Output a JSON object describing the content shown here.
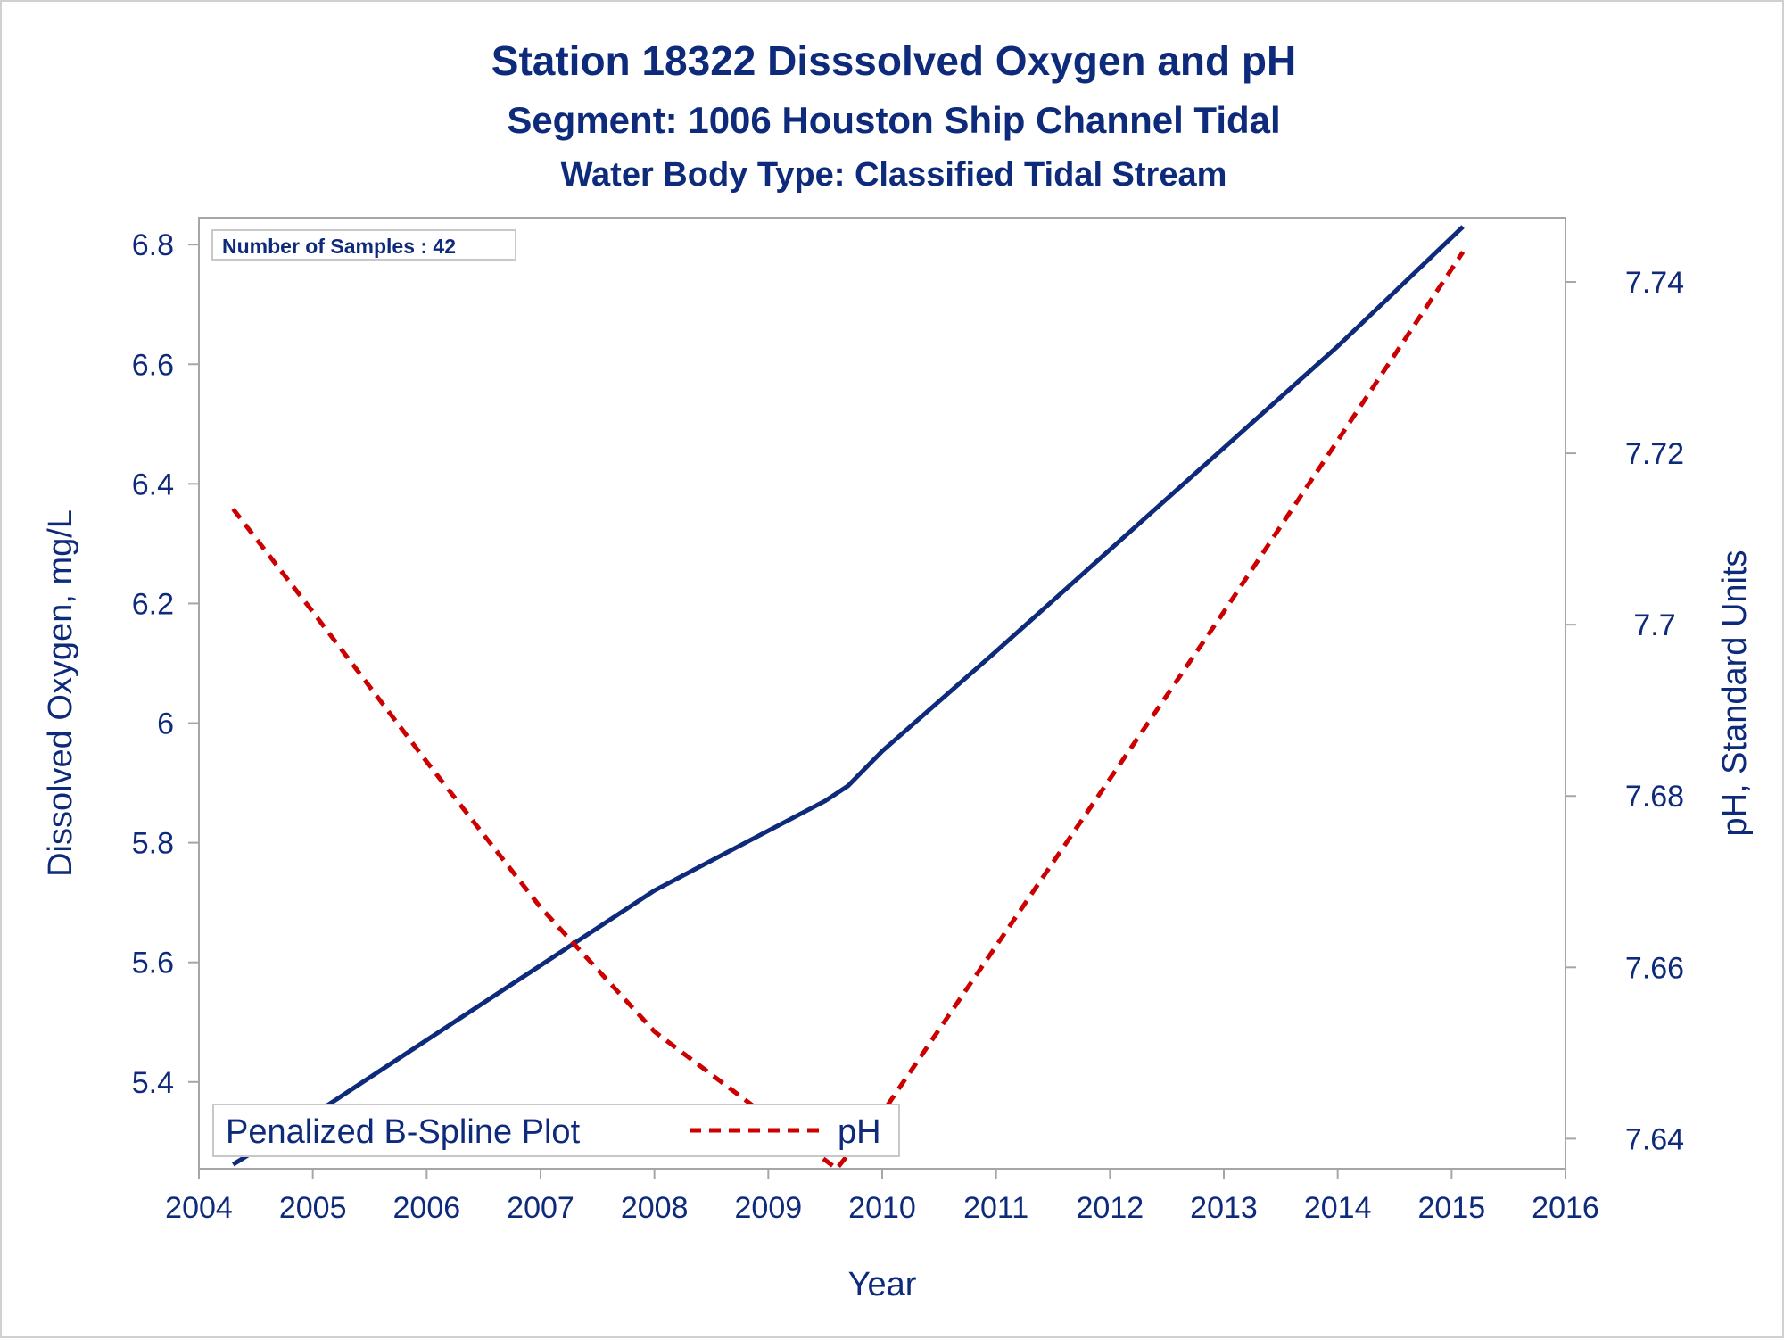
{
  "chart_data": {
    "type": "line",
    "title": "Station 18322   Disssolved Oxygen and pH",
    "subtitle": "Segment: 1006  Houston Ship Channel Tidal",
    "subtitle2": "Water Body Type: Classified Tidal Stream",
    "annotation": "Number of Samples : 42",
    "xlabel": "Year",
    "ylabel_left": "Dissolved Oxygen, mg/L",
    "ylabel_right": "pH, Standard Units",
    "x_ticks": [
      "2004",
      "2005",
      "2006",
      "2007",
      "2008",
      "2009",
      "2010",
      "2011",
      "2012",
      "2013",
      "2014",
      "2015",
      "2016"
    ],
    "y_left_ticks": [
      "5.4",
      "5.6",
      "5.8",
      "6",
      "6.2",
      "6.4",
      "6.6",
      "6.8"
    ],
    "y_right_ticks": [
      "7.64",
      "7.66",
      "7.68",
      "7.7",
      "7.72",
      "7.74"
    ],
    "xlim": [
      2004,
      2016
    ],
    "ylim_left": [
      5.255,
      6.845
    ],
    "ylim_right": [
      7.6365,
      7.7475
    ],
    "grid": false,
    "legend": {
      "title": "Penalized B-Spline Plot",
      "entries": [
        "pH"
      ],
      "placement": "bottom-left"
    },
    "series": [
      {
        "name": "",
        "axis": "left",
        "style": "solid",
        "color": "#0e2a7a",
        "x": [
          2004.3,
          2005,
          2006,
          2007,
          2008,
          2008.2,
          2009,
          2009.5,
          2009.7,
          2010,
          2011,
          2012,
          2013,
          2014,
          2015.1
        ],
        "y": [
          5.262,
          5.345,
          5.47,
          5.595,
          5.72,
          5.74,
          5.82,
          5.87,
          5.895,
          5.953,
          6.12,
          6.29,
          6.46,
          6.63,
          6.83
        ]
      },
      {
        "name": "pH",
        "axis": "right",
        "style": "dashed",
        "color": "#cc0000",
        "x": [
          2004.3,
          2005,
          2006,
          2007,
          2008,
          2009,
          2009.6,
          2010,
          2011,
          2012,
          2013,
          2014,
          2015.1
        ],
        "y": [
          7.7135,
          7.7015,
          7.684,
          7.667,
          7.6525,
          7.6425,
          7.6365,
          7.643,
          7.6625,
          7.682,
          7.7015,
          7.7215,
          7.7435
        ]
      }
    ]
  }
}
